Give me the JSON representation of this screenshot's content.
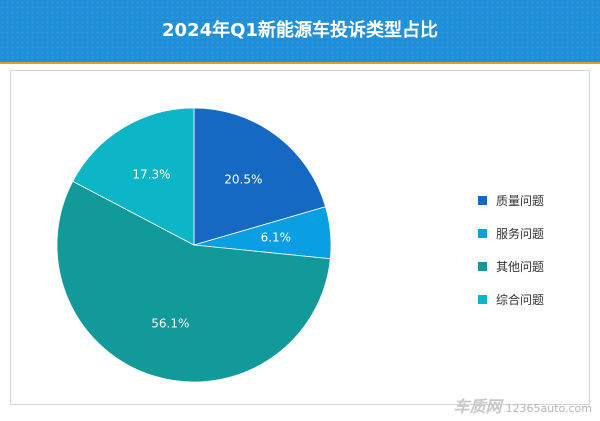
{
  "title": "2024年Q1新能源车投诉类型占比",
  "chart_data": {
    "type": "pie",
    "title": "2024年Q1新能源车投诉类型占比",
    "slices": [
      {
        "label": "质量问题",
        "value": 20.5,
        "display": "20.5%",
        "color": "#1569c2"
      },
      {
        "label": "服务问题",
        "value": 6.1,
        "display": "6.1%",
        "color": "#0a9fe2"
      },
      {
        "label": "其他问题",
        "value": 56.1,
        "display": "56.1%",
        "color": "#129a9a"
      },
      {
        "label": "综合问题",
        "value": 17.3,
        "display": "17.3%",
        "color": "#0cb6c6"
      }
    ],
    "legend_position": "right"
  },
  "watermark": {
    "logo": "车质网",
    "site": "12365auto.com"
  }
}
